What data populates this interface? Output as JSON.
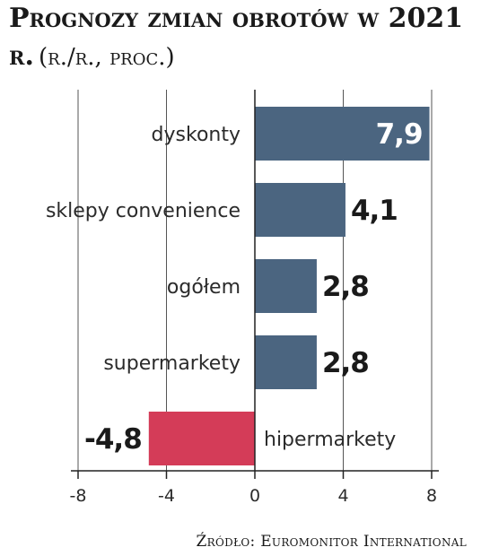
{
  "header": {
    "title": "Prognozy zmian obrotów w 2021 r.",
    "unit": "(r./r., proc.)"
  },
  "chart_data": {
    "type": "bar",
    "orientation": "horizontal",
    "categories": [
      "dyskonty",
      "sklepy convenience",
      "ogółem",
      "supermarkety",
      "hipermarkety"
    ],
    "values": [
      7.9,
      4.1,
      2.8,
      2.8,
      -4.8
    ],
    "value_labels": [
      "7,9",
      "4,1",
      "2,8",
      "2,8",
      "-4,8"
    ],
    "xlim": [
      -8,
      8
    ],
    "xticks": [
      -8,
      -4,
      0,
      4,
      8
    ],
    "xtick_labels": [
      "-8",
      "-4",
      "0",
      "4",
      "8"
    ],
    "colors": {
      "positive": "#4b6580",
      "negative": "#d43c58",
      "grid": "#555555"
    },
    "grid": true
  },
  "footer": {
    "source": "Źródło: Euromonitor International"
  }
}
